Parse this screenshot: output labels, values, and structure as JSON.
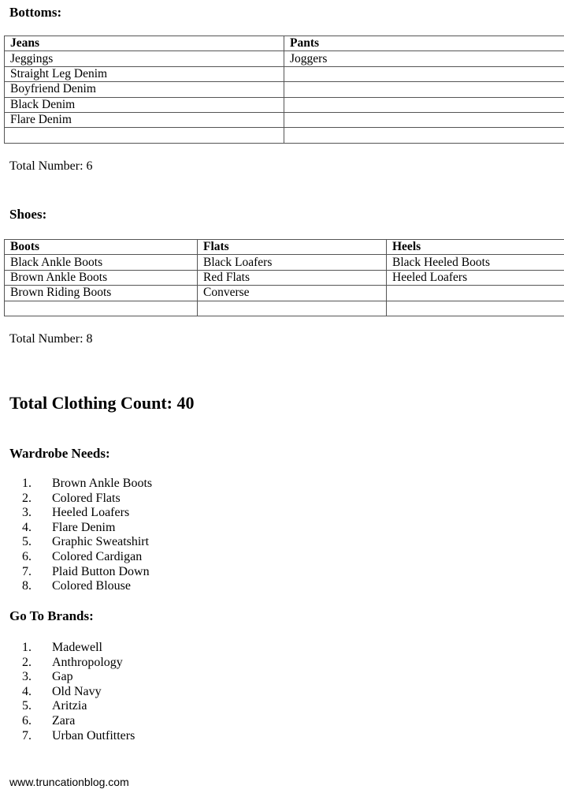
{
  "bottoms": {
    "heading": "Bottoms:",
    "columns": [
      "Jeans",
      "Pants"
    ],
    "rows": [
      [
        "Jeggings",
        "Joggers"
      ],
      [
        "Straight Leg Denim",
        ""
      ],
      [
        "Boyfriend Denim",
        ""
      ],
      [
        "Black Denim",
        ""
      ],
      [
        "Flare Denim",
        ""
      ],
      [
        "",
        ""
      ]
    ],
    "total": "Total Number: 6"
  },
  "shoes": {
    "heading": "Shoes:",
    "columns": [
      "Boots",
      "Flats",
      "Heels"
    ],
    "rows": [
      [
        "Black Ankle Boots",
        "Black Loafers",
        "Black Heeled Boots"
      ],
      [
        "Brown Ankle Boots",
        "Red Flats",
        "Heeled Loafers"
      ],
      [
        "Brown Riding Boots",
        "Converse",
        ""
      ],
      [
        "",
        "",
        ""
      ]
    ],
    "total": "Total Number: 8"
  },
  "total_clothing": "Total Clothing Count: 40",
  "wardrobe_needs": {
    "heading": "Wardrobe Needs:",
    "items": [
      "Brown Ankle Boots",
      "Colored Flats",
      "Heeled Loafers",
      "Flare Denim",
      "Graphic Sweatshirt",
      "Colored Cardigan",
      "Plaid Button Down",
      "Colored Blouse"
    ]
  },
  "brands": {
    "heading": "Go To Brands:",
    "items": [
      "Madewell",
      "Anthropology",
      "Gap",
      "Old Navy",
      "Aritzia",
      "Zara",
      "Urban Outfitters"
    ]
  },
  "footer": "www.truncationblog.com"
}
